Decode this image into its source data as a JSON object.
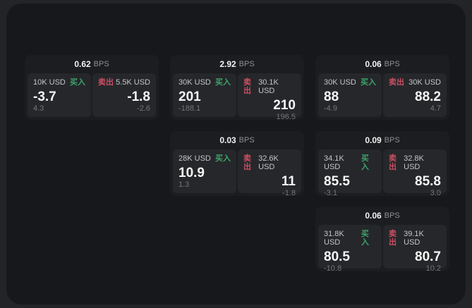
{
  "labels": {
    "bps_unit": "BPS",
    "buy": "买入",
    "sell": "卖出"
  },
  "colors": {
    "page_bg": "#232428",
    "panel_bg": "#17181b",
    "card_bg": "#1c1d20",
    "tile_bg": "#26272a",
    "buy_green": "#3da46c",
    "sell_red": "#c94f63",
    "primary_text": "#f6f6f6",
    "secondary_text": "#8f8f93"
  },
  "cards": [
    {
      "bps": "0.62",
      "buy": {
        "amount": "10K USD",
        "price": "-3.7",
        "change": "4.3"
      },
      "sell": {
        "amount": "5.5K USD",
        "price": "-1.8",
        "change": "-2.6"
      }
    },
    {
      "bps": "2.92",
      "buy": {
        "amount": "30K USD",
        "price": "201",
        "change": "-188.1"
      },
      "sell": {
        "amount": "30.1K USD",
        "price": "210",
        "change": "196.5"
      }
    },
    {
      "bps": "0.06",
      "buy": {
        "amount": "30K USD",
        "price": "88",
        "change": "-4.9"
      },
      "sell": {
        "amount": "30K USD",
        "price": "88.2",
        "change": "4.7"
      }
    },
    {
      "bps": "0.03",
      "buy": {
        "amount": "28K USD",
        "price": "10.9",
        "change": "1.3"
      },
      "sell": {
        "amount": "32.6K USD",
        "price": "11",
        "change": "-1.8"
      }
    },
    {
      "bps": "0.09",
      "buy": {
        "amount": "34.1K USD",
        "price": "85.5",
        "change": "-3.1"
      },
      "sell": {
        "amount": "32.8K USD",
        "price": "85.8",
        "change": "3.0"
      }
    },
    {
      "bps": "0.06",
      "buy": {
        "amount": "31.8K USD",
        "price": "80.5",
        "change": "-10.8"
      },
      "sell": {
        "amount": "39.1K USD",
        "price": "80.7",
        "change": "10.2"
      }
    }
  ]
}
